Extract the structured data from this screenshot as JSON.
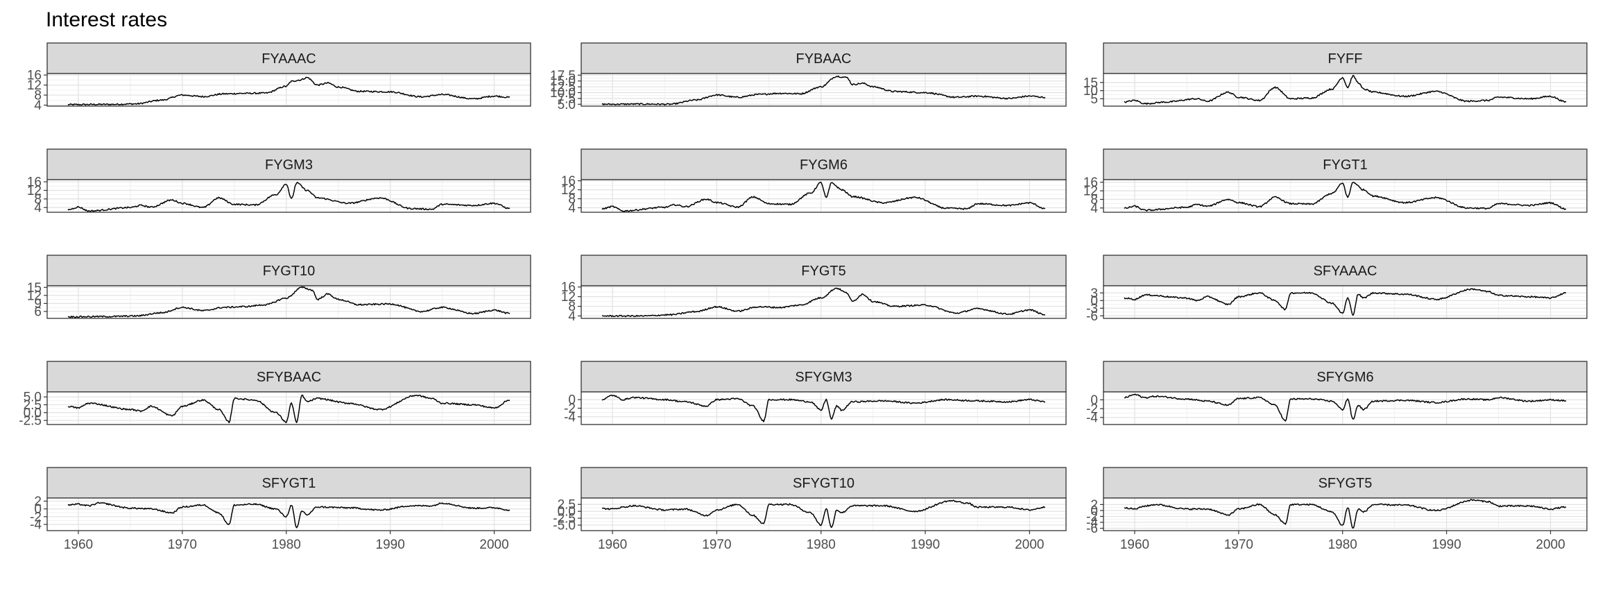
{
  "chart_data": {
    "type": "line",
    "title": "Interest rates",
    "xlabel": "",
    "ylabel": "",
    "xlim": [
      1957,
      2003.5
    ],
    "x_ticks": [
      1960,
      1970,
      1980,
      1990,
      2000
    ],
    "grid": true,
    "theme": "bw",
    "line_color": "#000000",
    "strip_color": "#d9d9d9",
    "panels": [
      {
        "name": "FYAAAC",
        "ylim": [
          3.6,
          16.6
        ],
        "y_ticks": [
          4,
          8,
          12,
          16
        ],
        "y_labels": [
          "4",
          "8",
          "12",
          "16"
        ],
        "x": [
          1959,
          1963,
          1965.5,
          1968,
          1970,
          1972,
          1974,
          1976,
          1978,
          1980,
          1980.5,
          1981.3,
          1982,
          1983,
          1984,
          1985,
          1987,
          1990,
          1993,
          1995,
          1998,
          2000,
          2001.5
        ],
        "y": [
          4.2,
          4.3,
          4.5,
          6.0,
          8.0,
          7.4,
          8.5,
          8.7,
          8.8,
          11.5,
          13.5,
          14.0,
          15.0,
          12.0,
          12.8,
          11.2,
          9.5,
          9.3,
          7.3,
          8.2,
          6.5,
          7.6,
          7.1
        ]
      },
      {
        "name": "FYBAAC",
        "ylim": [
          4.2,
          18.2
        ],
        "y_ticks": [
          5,
          7.5,
          10,
          12.5,
          15,
          17.5
        ],
        "y_labels": [
          "5.0",
          "7.5",
          "10.0",
          "12.5",
          "15.0",
          "17.5"
        ],
        "x": [
          1959,
          1963,
          1965.5,
          1968,
          1970,
          1972,
          1974,
          1976,
          1978,
          1980,
          1981.5,
          1982.5,
          1983,
          1984,
          1985,
          1987,
          1990,
          1993,
          1995,
          1998,
          2000,
          2001.5
        ],
        "y": [
          5.0,
          5.1,
          5.0,
          6.8,
          9.0,
          8.0,
          9.2,
          9.7,
          9.5,
          12.5,
          17.0,
          16.5,
          13.5,
          14.0,
          12.5,
          10.5,
          10.0,
          8.0,
          8.5,
          7.5,
          8.5,
          8.0
        ]
      },
      {
        "name": "FYFF",
        "ylim": [
          0.5,
          20.5
        ],
        "y_ticks": [
          5,
          10,
          15
        ],
        "y_labels": [
          "5",
          "10",
          "15"
        ],
        "x": [
          1959,
          1960,
          1961,
          1963,
          1966,
          1967,
          1969,
          1970,
          1972,
          1973.5,
          1975,
          1977,
          1979,
          1980,
          1980.5,
          1981,
          1981.5,
          1982,
          1983,
          1986,
          1989,
          1992,
          1994,
          1995,
          1998,
          2000,
          2001.5
        ],
        "y": [
          3.0,
          4.0,
          2.0,
          3.0,
          5.0,
          3.5,
          9.0,
          6.0,
          4.0,
          12.0,
          5.0,
          5.5,
          11.0,
          18.0,
          12.0,
          19.0,
          15.0,
          11.0,
          9.0,
          6.5,
          9.5,
          3.5,
          4.0,
          6.0,
          5.0,
          6.5,
          3.0
        ]
      },
      {
        "name": "FYGM3",
        "ylim": [
          1.8,
          17
        ],
        "y_ticks": [
          4,
          8,
          12,
          16
        ],
        "y_labels": [
          "4",
          "8",
          "12",
          "16"
        ],
        "x": [
          1959,
          1960,
          1961,
          1965,
          1966,
          1967,
          1969,
          1970,
          1972,
          1973.5,
          1975,
          1977,
          1979,
          1980,
          1980.5,
          1981,
          1982,
          1983,
          1986,
          1989,
          1992,
          1994,
          1995,
          1998,
          2000,
          2001.5
        ],
        "y": [
          3.0,
          4.2,
          2.4,
          4.0,
          5.0,
          4.2,
          7.5,
          6.0,
          4.0,
          8.5,
          5.5,
          5.2,
          10.0,
          15.0,
          8.0,
          15.5,
          12.0,
          8.5,
          6.0,
          8.5,
          3.5,
          3.2,
          5.5,
          5.0,
          6.0,
          3.5
        ]
      },
      {
        "name": "FYGM6",
        "ylim": [
          2,
          16.5
        ],
        "y_ticks": [
          4,
          8,
          12,
          16
        ],
        "y_labels": [
          "4",
          "8",
          "12",
          "16"
        ],
        "x": [
          1959,
          1960,
          1961,
          1965,
          1966,
          1967,
          1969,
          1970,
          1972,
          1973.5,
          1975,
          1977,
          1979,
          1980,
          1980.5,
          1981,
          1982,
          1983,
          1986,
          1989,
          1992,
          1994,
          1995,
          1998,
          2000,
          2001.5
        ],
        "y": [
          3.5,
          4.5,
          2.6,
          4.2,
          5.3,
          4.5,
          7.8,
          6.3,
          4.3,
          8.8,
          5.8,
          5.5,
          10.5,
          15.2,
          8.5,
          15.0,
          12.0,
          9.0,
          6.2,
          8.6,
          3.8,
          3.5,
          5.8,
          5.0,
          6.2,
          3.6
        ]
      },
      {
        "name": "FYGT1",
        "ylim": [
          2,
          17.2
        ],
        "y_ticks": [
          4,
          8,
          12,
          16
        ],
        "y_labels": [
          "4",
          "8",
          "12",
          "16"
        ],
        "x": [
          1959,
          1960,
          1961,
          1965,
          1966,
          1967,
          1969,
          1970,
          1972,
          1973.5,
          1975,
          1977,
          1979,
          1980,
          1980.5,
          1981,
          1982,
          1983,
          1986,
          1989,
          1992,
          1994,
          1995,
          1998,
          2000,
          2001.5
        ],
        "y": [
          3.8,
          4.8,
          2.9,
          4.3,
          5.6,
          4.8,
          8.0,
          6.5,
          4.6,
          9.0,
          6.0,
          5.8,
          10.8,
          15.5,
          9.0,
          16.0,
          12.5,
          9.5,
          6.5,
          8.8,
          4.0,
          3.8,
          6.0,
          5.2,
          6.4,
          3.5
        ]
      },
      {
        "name": "FYGT10",
        "ylim": [
          3.4,
          15.6
        ],
        "y_ticks": [
          6,
          9,
          12,
          15
        ],
        "y_labels": [
          "6",
          "9",
          "12",
          "15"
        ],
        "x": [
          1959,
          1963,
          1965.5,
          1968,
          1970,
          1972,
          1974,
          1976,
          1978,
          1980,
          1981.5,
          1982.5,
          1983,
          1984,
          1985,
          1987,
          1990,
          1993,
          1995,
          1998,
          2000,
          2001.5
        ],
        "y": [
          4.0,
          4.1,
          4.3,
          5.5,
          7.5,
          6.3,
          7.5,
          7.8,
          8.5,
          11.0,
          15.0,
          14.0,
          10.5,
          12.5,
          10.5,
          8.5,
          8.8,
          6.0,
          7.5,
          5.2,
          6.5,
          5.2
        ]
      },
      {
        "name": "FYGT5",
        "ylim": [
          3,
          16.5
        ],
        "y_ticks": [
          4,
          8,
          12,
          16
        ],
        "y_labels": [
          "4",
          "8",
          "12",
          "16"
        ],
        "x": [
          1959,
          1963,
          1965.5,
          1968,
          1970,
          1972,
          1974,
          1976,
          1978,
          1980,
          1981.5,
          1982.5,
          1983,
          1984,
          1985,
          1987,
          1990,
          1993,
          1995,
          1998,
          2000,
          2001.5
        ],
        "y": [
          4.0,
          4.0,
          4.5,
          5.8,
          7.8,
          6.0,
          7.8,
          7.5,
          8.5,
          11.5,
          15.5,
          13.5,
          10.0,
          13.0,
          10.0,
          8.0,
          8.5,
          5.2,
          7.0,
          4.8,
          6.5,
          4.5
        ]
      },
      {
        "name": "SFYAAAC",
        "ylim": [
          -7,
          5.8
        ],
        "y_ticks": [
          -6,
          -3,
          0,
          3
        ],
        "y_labels": [
          "-6",
          "-3",
          "0",
          "3"
        ],
        "x": [
          1959,
          1960,
          1961,
          1965,
          1966,
          1967,
          1969,
          1970,
          1972,
          1973.5,
          1974.5,
          1975,
          1977,
          1979,
          1980,
          1980.5,
          1981,
          1981.5,
          1982,
          1983,
          1986,
          1989,
          1992.5,
          1994,
          1995,
          1998,
          2000,
          2001.5
        ],
        "y": [
          1.0,
          0.5,
          2.2,
          1.0,
          0.0,
          1.5,
          -1.5,
          1.5,
          3.0,
          0.0,
          -3.5,
          3.0,
          3.0,
          -1.0,
          -5.0,
          1.0,
          -5.5,
          2.5,
          1.0,
          3.0,
          2.5,
          0.5,
          4.5,
          3.5,
          2.0,
          1.5,
          1.0,
          3.0
        ]
      },
      {
        "name": "SFYBAAC",
        "ylim": [
          -3.8,
          6.6
        ],
        "y_ticks": [
          -2.5,
          0,
          2.5,
          5
        ],
        "y_labels": [
          "-2.5",
          "0.0",
          "2.5",
          "5.0"
        ],
        "x": [
          1959,
          1960,
          1961,
          1965,
          1966,
          1967,
          1969,
          1970,
          1972,
          1973.5,
          1974.5,
          1975,
          1977,
          1979,
          1980,
          1980.5,
          1981,
          1981.5,
          1982,
          1983,
          1986,
          1989,
          1992.5,
          1994,
          1995,
          1998,
          2000,
          2001.5
        ],
        "y": [
          2.0,
          1.5,
          3.0,
          1.0,
          0.5,
          2.0,
          -1.0,
          2.0,
          4.0,
          1.0,
          -3.0,
          4.5,
          4.0,
          0.0,
          -3.0,
          3.0,
          -3.2,
          5.5,
          3.5,
          4.5,
          3.0,
          1.0,
          5.5,
          4.5,
          3.0,
          2.5,
          1.5,
          4.0
        ]
      },
      {
        "name": "SFYGM3",
        "ylim": [
          -5.8,
          1.8
        ],
        "y_ticks": [
          -4,
          -2,
          0
        ],
        "y_labels": [
          "-4",
          "-2",
          "0"
        ],
        "x": [
          1959,
          1960,
          1961,
          1962,
          1965,
          1967,
          1969,
          1970,
          1972,
          1973.5,
          1974.5,
          1975,
          1977,
          1979,
          1980,
          1980.5,
          1981,
          1981.5,
          1982,
          1983,
          1986,
          1989,
          1992,
          1994,
          1995,
          1998,
          2000,
          2001.5
        ],
        "y": [
          0.0,
          1.0,
          0.0,
          0.5,
          0.0,
          -0.5,
          -1.5,
          0.0,
          0.2,
          -1.5,
          -5.0,
          0.0,
          0.0,
          -0.5,
          -2.5,
          0.0,
          -4.5,
          -1.5,
          -2.5,
          -0.5,
          -0.3,
          -0.8,
          0.0,
          -0.2,
          -0.3,
          -0.5,
          0.0,
          -0.5
        ]
      },
      {
        "name": "SFYGM6",
        "ylim": [
          -5.6,
          1.8
        ],
        "y_ticks": [
          -4,
          -2,
          0
        ],
        "y_labels": [
          "-4",
          "-2",
          "0"
        ],
        "x": [
          1959,
          1960,
          1961,
          1962,
          1965,
          1967,
          1969,
          1970,
          1972,
          1973.5,
          1974.5,
          1975,
          1977,
          1979,
          1980,
          1980.5,
          1981,
          1981.5,
          1982,
          1983,
          1986,
          1989,
          1992,
          1994,
          1995,
          1998,
          2000,
          2001.5
        ],
        "y": [
          0.5,
          1.2,
          0.5,
          0.8,
          0.2,
          -0.3,
          -1.2,
          0.3,
          0.5,
          -1.2,
          -4.8,
          0.2,
          0.2,
          -0.3,
          -2.2,
          0.2,
          -4.5,
          -1.2,
          -2.2,
          -0.3,
          -0.1,
          -0.6,
          0.2,
          0.0,
          0.5,
          -0.3,
          0.0,
          -0.2
        ]
      },
      {
        "name": "SFYGT1",
        "ylim": [
          -5.6,
          2.8
        ],
        "y_ticks": [
          -4,
          -2,
          0,
          2
        ],
        "y_labels": [
          "-4",
          "-2",
          "0",
          "2"
        ],
        "x": [
          1959,
          1960,
          1961,
          1962,
          1965,
          1967,
          1969,
          1970,
          1972,
          1973.5,
          1974.5,
          1975,
          1977,
          1979,
          1980,
          1980.5,
          1981,
          1981.5,
          1982,
          1983,
          1986,
          1989,
          1992,
          1994,
          1995,
          1998,
          2000,
          2001.5
        ],
        "y": [
          1.0,
          1.2,
          0.8,
          1.5,
          0.2,
          0.0,
          -1.0,
          0.5,
          1.0,
          -1.0,
          -4.0,
          1.0,
          1.2,
          0.0,
          -2.0,
          1.0,
          -5.0,
          -0.5,
          -1.5,
          0.5,
          0.3,
          -0.3,
          0.8,
          0.8,
          1.5,
          0.2,
          0.3,
          -0.3
        ]
      },
      {
        "name": "SFYGT10",
        "ylim": [
          -7,
          4.8
        ],
        "y_ticks": [
          -5,
          -2.5,
          0,
          2.5
        ],
        "y_labels": [
          "-5.0",
          "-2.5",
          "0.0",
          "2.5"
        ],
        "x": [
          1959,
          1960,
          1961,
          1962,
          1965,
          1967,
          1969,
          1970,
          1972,
          1973.5,
          1974.5,
          1975,
          1977,
          1979,
          1980,
          1980.5,
          1981,
          1981.5,
          1982,
          1983,
          1986,
          1989,
          1992.5,
          1994,
          1995,
          1998,
          2000,
          2001.5
        ],
        "y": [
          1.0,
          0.8,
          1.5,
          2.0,
          0.5,
          0.8,
          -1.5,
          0.5,
          2.5,
          -1.5,
          -4.5,
          2.5,
          2.5,
          -0.5,
          -5.0,
          1.0,
          -6.0,
          0.5,
          -0.5,
          2.0,
          2.0,
          0.0,
          3.8,
          3.0,
          1.5,
          1.5,
          0.5,
          1.5
        ]
      },
      {
        "name": "SFYGT5",
        "ylim": [
          -6.8,
          4.2
        ],
        "y_ticks": [
          -6,
          -4,
          -2,
          0,
          2
        ],
        "y_labels": [
          "-6",
          "-4",
          "-2",
          "0",
          "2"
        ],
        "x": [
          1959,
          1960,
          1961,
          1962,
          1965,
          1967,
          1969,
          1970,
          1972,
          1973.5,
          1974.5,
          1975,
          1977,
          1979,
          1980,
          1980.5,
          1981,
          1981.5,
          1982,
          1983,
          1986,
          1989,
          1992.5,
          1994,
          1995,
          1998,
          2000,
          2001.5
        ],
        "y": [
          1.0,
          0.5,
          1.5,
          2.0,
          0.5,
          0.5,
          -1.5,
          0.5,
          2.0,
          -1.5,
          -4.5,
          2.0,
          2.0,
          -0.5,
          -5.0,
          1.0,
          -6.0,
          0.5,
          -0.5,
          2.0,
          1.8,
          0.0,
          3.5,
          3.0,
          1.5,
          1.5,
          0.5,
          1.2
        ]
      }
    ]
  }
}
